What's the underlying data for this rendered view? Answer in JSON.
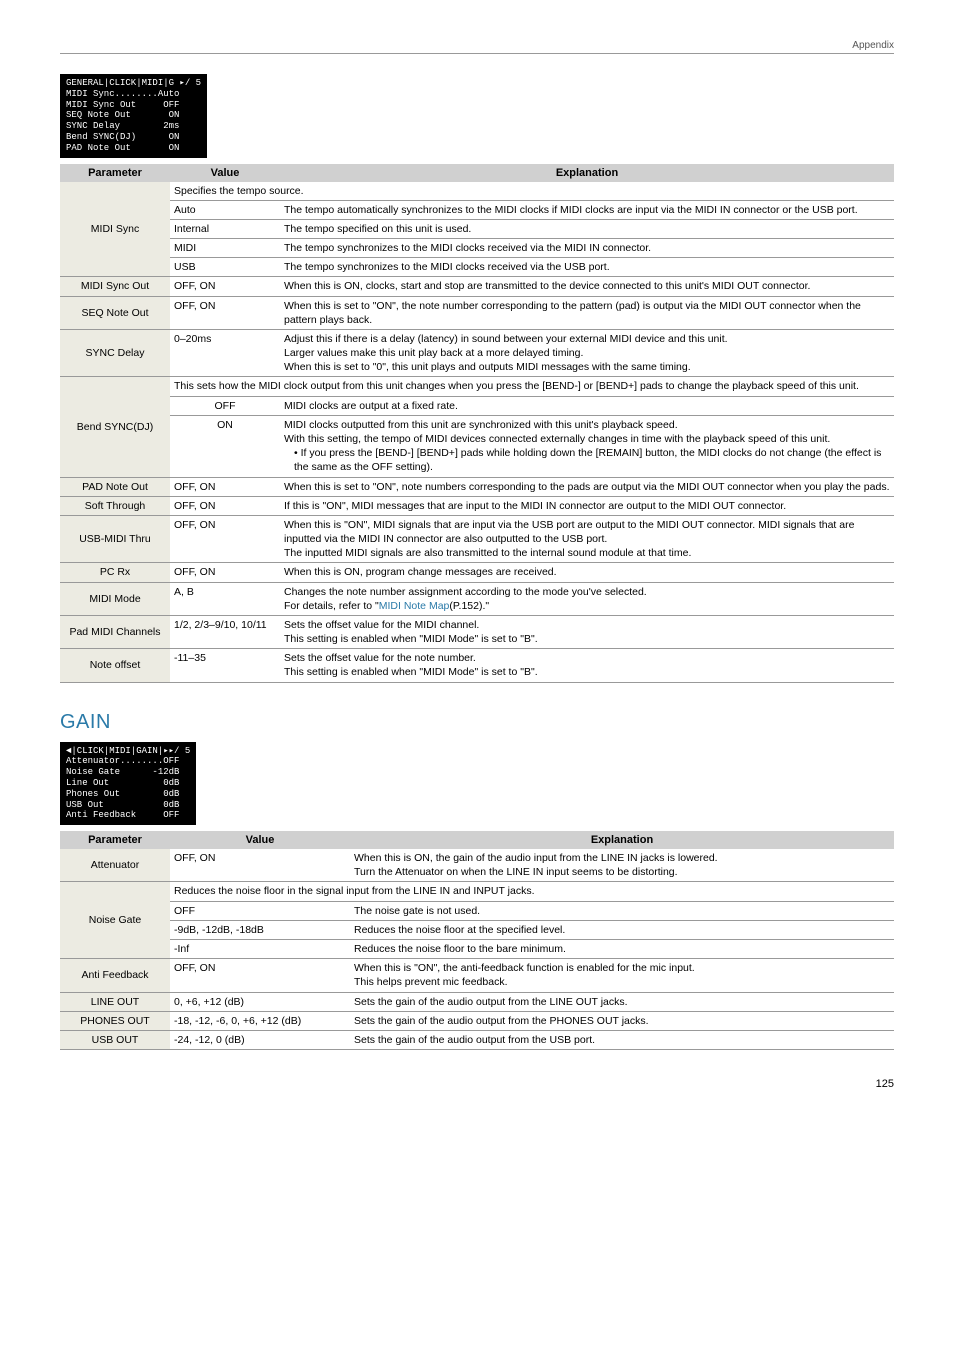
{
  "header": {
    "section": "Appendix",
    "pagenum": "125"
  },
  "lcd1": "GENERAL|CLICK|MIDI|G ▸/ 5\nMIDI Sync........Auto\nMIDI Sync Out     OFF\nSEQ Note Out       ON\nSYNC Delay        2ms\nBend SYNC(DJ)      ON\nPAD Note Out       ON",
  "table1": {
    "headers": {
      "param": "Parameter",
      "value": "Value",
      "expl": "Explanation"
    },
    "rows": [
      {
        "param": "MIDI Sync",
        "sub": [
          {
            "value": "",
            "valueSpan": 2,
            "expl": "Specifies the tempo source."
          },
          {
            "value": "Auto",
            "expl": "The tempo automatically synchronizes to the MIDI clocks if MIDI clocks are input via the MIDI IN connector or the USB port."
          },
          {
            "value": "Internal",
            "expl": "The tempo specified on this unit is used."
          },
          {
            "value": "MIDI",
            "expl": "The tempo synchronizes to the MIDI clocks received via the MIDI IN connector."
          },
          {
            "value": "USB",
            "expl": "The tempo synchronizes to the MIDI clocks received via the USB port."
          }
        ]
      },
      {
        "param": "MIDI Sync Out",
        "sub": [
          {
            "value": "OFF, ON",
            "expl": "When this is ON, clocks, start and stop are transmitted to the device connected to this unit's MIDI OUT connector."
          }
        ]
      },
      {
        "param": "SEQ Note Out",
        "sub": [
          {
            "value": "OFF, ON",
            "expl": "When this is set to \"ON\", the note number corresponding to the pattern (pad) is output via the MIDI OUT connector when the pattern plays back."
          }
        ]
      },
      {
        "param": "SYNC Delay",
        "sub": [
          {
            "value": "0–20ms",
            "expl": "Adjust this if there is a delay (latency) in sound between your external MIDI device and this unit.\nLarger values make this unit play back at a more delayed timing.\nWhen this is set to \"0\", this unit plays and outputs MIDI messages with the same timing."
          }
        ]
      },
      {
        "param": "Bend SYNC(DJ)",
        "sub": [
          {
            "value": "",
            "valueSpan": 2,
            "expl": "This sets how the MIDI clock output from this unit changes when you press the [BEND-] or [BEND+] pads to change the playback speed of this unit."
          },
          {
            "value": "OFF",
            "center": true,
            "expl": "MIDI clocks are output at a fixed rate."
          },
          {
            "value": "ON",
            "center": true,
            "expl": "MIDI clocks outputted from this unit are synchronized with this unit's playback speed.\nWith this setting, the tempo of MIDI devices connected externally changes in time with the playback speed of this unit.",
            "bullet": "If you press the [BEND-] [BEND+] pads while holding down the [REMAIN] button, the MIDI clocks do not change (the effect is the same as the OFF setting)."
          }
        ]
      },
      {
        "param": "PAD Note Out",
        "sub": [
          {
            "value": "OFF, ON",
            "expl": "When this is set to \"ON\", note numbers corresponding to the pads are output via the MIDI OUT connector when you play the pads."
          }
        ]
      },
      {
        "param": "Soft Through",
        "sub": [
          {
            "value": "OFF, ON",
            "expl": "If this is \"ON\", MIDI messages that are input to the MIDI IN connector are output to the MIDI OUT connector."
          }
        ]
      },
      {
        "param": "USB-MIDI Thru",
        "sub": [
          {
            "value": "OFF, ON",
            "expl": "When this is \"ON\", MIDI signals that are input via the USB port are output to the MIDI OUT connector. MIDI signals that are inputted via the MIDI IN connector are also outputted to the USB port.\nThe inputted MIDI signals are also transmitted to the internal sound module at that time."
          }
        ]
      },
      {
        "param": "PC Rx",
        "sub": [
          {
            "value": "OFF, ON",
            "expl": "When this is ON, program change messages are received."
          }
        ]
      },
      {
        "param": "MIDI Mode",
        "sub": [
          {
            "value": "A, B",
            "expl": "Changes the note number assignment according to the mode you've selected.\nFor details, refer to \"",
            "link": "MIDI Note Map",
            "linkAfter": "(P.152).\""
          }
        ]
      },
      {
        "param": "Pad MIDI Channels",
        "sub": [
          {
            "value": "1/2, 2/3–9/10, 10/11",
            "expl": "Sets the offset value for the MIDI channel.\nThis setting is enabled when \"MIDI Mode\" is set to \"B\"."
          }
        ]
      },
      {
        "param": "Note offset",
        "sub": [
          {
            "value": "-11–35",
            "expl": "Sets the offset value for the note number.\nThis setting is enabled when \"MIDI Mode\" is set to \"B\"."
          }
        ]
      }
    ]
  },
  "gainTitle": "GAIN",
  "lcd2": "◄|CLICK|MIDI|GAIN|▸▸/ 5\nAttenuator........OFF\nNoise Gate      -12dB\nLine Out          0dB\nPhones Out        0dB\nUSB Out           0dB\nAnti Feedback     OFF",
  "table2": {
    "headers": {
      "param": "Parameter",
      "value": "Value",
      "expl": "Explanation"
    },
    "valueWidth": "180px",
    "rows": [
      {
        "param": "Attenuator",
        "sub": [
          {
            "value": "OFF, ON",
            "expl": "When this is ON, the gain of the audio input from the LINE IN jacks is lowered.\nTurn the Attenuator on when the LINE IN input seems to be distorting."
          }
        ]
      },
      {
        "param": "Noise Gate",
        "sub": [
          {
            "value": "",
            "valueSpan": 2,
            "expl": "Reduces the noise floor in the signal input from the LINE IN and INPUT jacks."
          },
          {
            "value": "OFF",
            "expl": "The noise gate is not used."
          },
          {
            "value": "-9dB, -12dB, -18dB",
            "expl": "Reduces the noise floor at the specified level."
          },
          {
            "value": "-Inf",
            "expl": "Reduces the noise floor to the bare minimum."
          }
        ]
      },
      {
        "param": "Anti Feedback",
        "sub": [
          {
            "value": "OFF, ON",
            "expl": "When this is \"ON\", the anti-feedback function is enabled for the mic input.\nThis helps prevent mic feedback."
          }
        ]
      },
      {
        "param": "LINE OUT",
        "sub": [
          {
            "value": "0, +6, +12 (dB)",
            "expl": "Sets the gain of the audio output from the LINE OUT jacks."
          }
        ]
      },
      {
        "param": "PHONES OUT",
        "sub": [
          {
            "value": "-18, -12, -6, 0, +6, +12 (dB)",
            "expl": "Sets the gain of the audio output from the PHONES OUT jacks."
          }
        ]
      },
      {
        "param": "USB OUT",
        "sub": [
          {
            "value": "-24, -12, 0 (dB)",
            "expl": "Sets the gain of the audio output from the USB port."
          }
        ]
      }
    ]
  }
}
